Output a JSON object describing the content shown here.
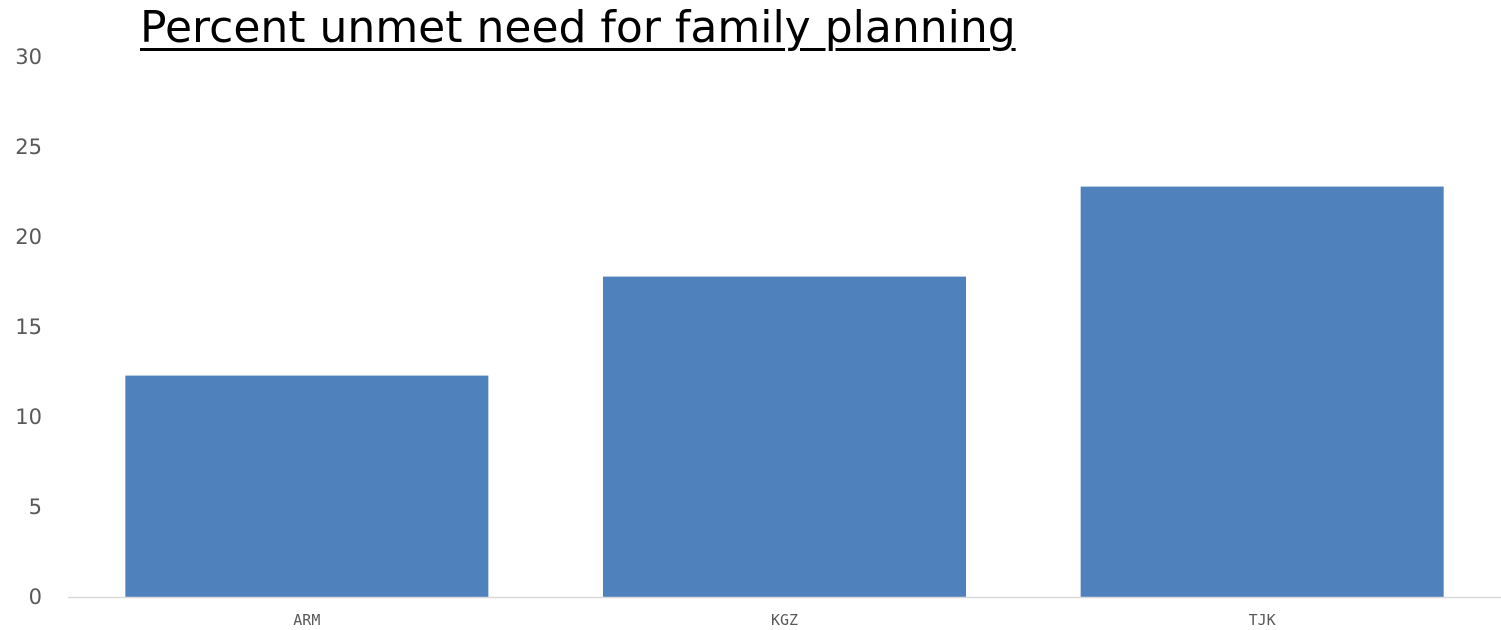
{
  "chart_data": {
    "type": "bar",
    "title": "Percent unmet need for family planning",
    "xlabel": "",
    "ylabel": "",
    "categories": [
      "ARM",
      "KGZ",
      "TJK"
    ],
    "values": [
      12.3,
      17.8,
      22.8
    ],
    "ylim": [
      0,
      30
    ],
    "yticks": [
      "0",
      "5",
      "10",
      "15",
      "20",
      "25",
      "30"
    ],
    "grid": false,
    "legend": "none",
    "colors": {
      "bar": "#4f81bd",
      "axis": "#d9d9d9",
      "tick_text": "#595959",
      "title": "#000000"
    }
  }
}
